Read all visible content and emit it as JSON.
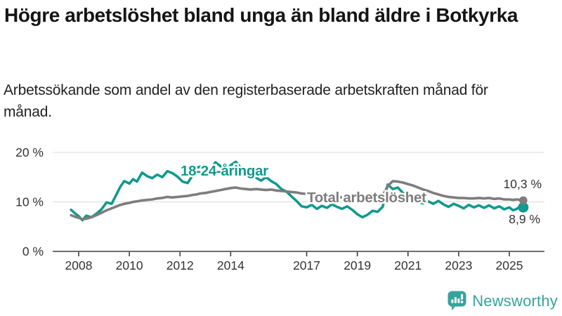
{
  "header": {
    "title": "Högre arbetslöshet bland unga än bland äldre i Botkyrka",
    "subtitle": "Arbetssökande som andel av den registerbaserade arbetskraften månad för månad."
  },
  "footer": {
    "brand": "Newsworthy",
    "brand_color": "#38a39b"
  },
  "chart_data": {
    "type": "line",
    "title": "Högre arbetslöshet bland unga än bland äldre i Botkyrka",
    "subtitle": "Arbetssökande som andel av den registerbaserade arbetskraften månad för månad.",
    "unit": "%",
    "grid": "horizontal",
    "legend_position": "inline-labels",
    "ylim": [
      0,
      21
    ],
    "yticks": [
      0,
      10,
      20
    ],
    "ytick_labels": [
      "0 %",
      "10 %",
      "20 %"
    ],
    "xticks": [
      2008,
      2010,
      2012,
      2014,
      2017,
      2019,
      2021,
      2023,
      2025
    ],
    "xtick_labels": [
      "2008",
      "2010",
      "2012",
      "2014",
      "2017",
      "2019",
      "2021",
      "2023",
      "2025"
    ],
    "xlim": [
      2007.5,
      2026.3
    ],
    "axis_color": "#3f3f3f",
    "gridline_color": "#dcdcdc",
    "tick_label_color": "#333333",
    "end_label_color": "#333333",
    "x": [
      2007.7,
      2007.85,
      2008.0,
      2008.15,
      2008.3,
      2008.5,
      2008.7,
      2008.9,
      2009.1,
      2009.3,
      2009.5,
      2009.65,
      2009.8,
      2010.0,
      2010.15,
      2010.3,
      2010.5,
      2010.7,
      2010.9,
      2011.1,
      2011.3,
      2011.5,
      2011.7,
      2011.9,
      2012.1,
      2012.3,
      2012.5,
      2012.65,
      2012.8,
      2013.0,
      2013.2,
      2013.4,
      2013.6,
      2013.8,
      2014.0,
      2014.2,
      2014.4,
      2014.6,
      2014.8,
      2015.0,
      2015.2,
      2015.4,
      2015.6,
      2015.8,
      2016.0,
      2016.2,
      2016.4,
      2016.6,
      2016.8,
      2017.0,
      2017.2,
      2017.4,
      2017.6,
      2017.8,
      2018.0,
      2018.2,
      2018.4,
      2018.6,
      2018.8,
      2019.0,
      2019.2,
      2019.4,
      2019.6,
      2019.8,
      2020.0,
      2020.2,
      2020.4,
      2020.6,
      2020.8,
      2021.0,
      2021.2,
      2021.4,
      2021.6,
      2021.8,
      2022.0,
      2022.2,
      2022.4,
      2022.6,
      2022.8,
      2023.0,
      2023.2,
      2023.4,
      2023.6,
      2023.8,
      2024.0,
      2024.2,
      2024.4,
      2024.6,
      2024.8,
      2025.0,
      2025.15,
      2025.3,
      2025.45,
      2025.55
    ],
    "series": [
      {
        "name": "18-24-åringar",
        "color": "#119a8d",
        "end_label": "8,9 %",
        "end_value": 8.9,
        "values": [
          8.4,
          7.7,
          7.1,
          6.3,
          7.2,
          6.9,
          7.6,
          8.5,
          9.9,
          9.6,
          11.6,
          13.1,
          14.2,
          13.7,
          14.6,
          14.1,
          15.9,
          15.2,
          14.8,
          15.5,
          15.0,
          16.2,
          15.8,
          15.1,
          14.1,
          13.8,
          15.4,
          16.9,
          17.1,
          16.2,
          16.6,
          18.0,
          17.2,
          16.5,
          17.4,
          18.1,
          16.9,
          16.4,
          16.9,
          14.9,
          14.3,
          15.0,
          14.2,
          13.6,
          12.6,
          12.1,
          11.1,
          10.2,
          9.1,
          8.9,
          9.4,
          8.6,
          9.2,
          8.8,
          9.5,
          9.0,
          8.6,
          9.1,
          8.4,
          7.5,
          6.9,
          7.4,
          8.2,
          8.0,
          9.0,
          13.5,
          12.6,
          12.9,
          11.8,
          10.9,
          10.3,
          10.0,
          9.7,
          10.1,
          9.6,
          10.2,
          9.5,
          9.0,
          9.6,
          9.2,
          8.7,
          9.4,
          8.9,
          9.3,
          8.8,
          9.3,
          8.7,
          9.1,
          8.5,
          8.9,
          8.3,
          8.6,
          9.2,
          8.9
        ]
      },
      {
        "name": "Total arbetslöshet",
        "color": "#7d7d7d",
        "end_label": "10,3 %",
        "end_value": 10.3,
        "values": [
          7.3,
          7.0,
          6.8,
          6.5,
          6.6,
          6.9,
          7.3,
          7.8,
          8.3,
          8.7,
          9.1,
          9.4,
          9.6,
          9.8,
          10.0,
          10.1,
          10.3,
          10.4,
          10.5,
          10.7,
          10.8,
          11.0,
          10.9,
          11.0,
          11.1,
          11.2,
          11.4,
          11.5,
          11.7,
          11.8,
          12.0,
          12.2,
          12.4,
          12.6,
          12.8,
          12.9,
          12.7,
          12.6,
          12.5,
          12.6,
          12.5,
          12.4,
          12.5,
          12.3,
          12.2,
          12.1,
          12.0,
          11.9,
          11.7,
          11.6,
          11.4,
          11.3,
          11.2,
          11.1,
          11.0,
          10.9,
          10.9,
          10.8,
          10.8,
          10.7,
          10.7,
          10.6,
          10.7,
          10.8,
          11.2,
          13.2,
          14.2,
          14.1,
          13.9,
          13.6,
          13.3,
          12.9,
          12.5,
          12.2,
          11.8,
          11.5,
          11.2,
          11.0,
          10.9,
          10.8,
          10.8,
          10.7,
          10.7,
          10.8,
          10.7,
          10.8,
          10.6,
          10.7,
          10.5,
          10.5,
          10.4,
          10.5,
          10.4,
          10.3
        ]
      }
    ]
  }
}
